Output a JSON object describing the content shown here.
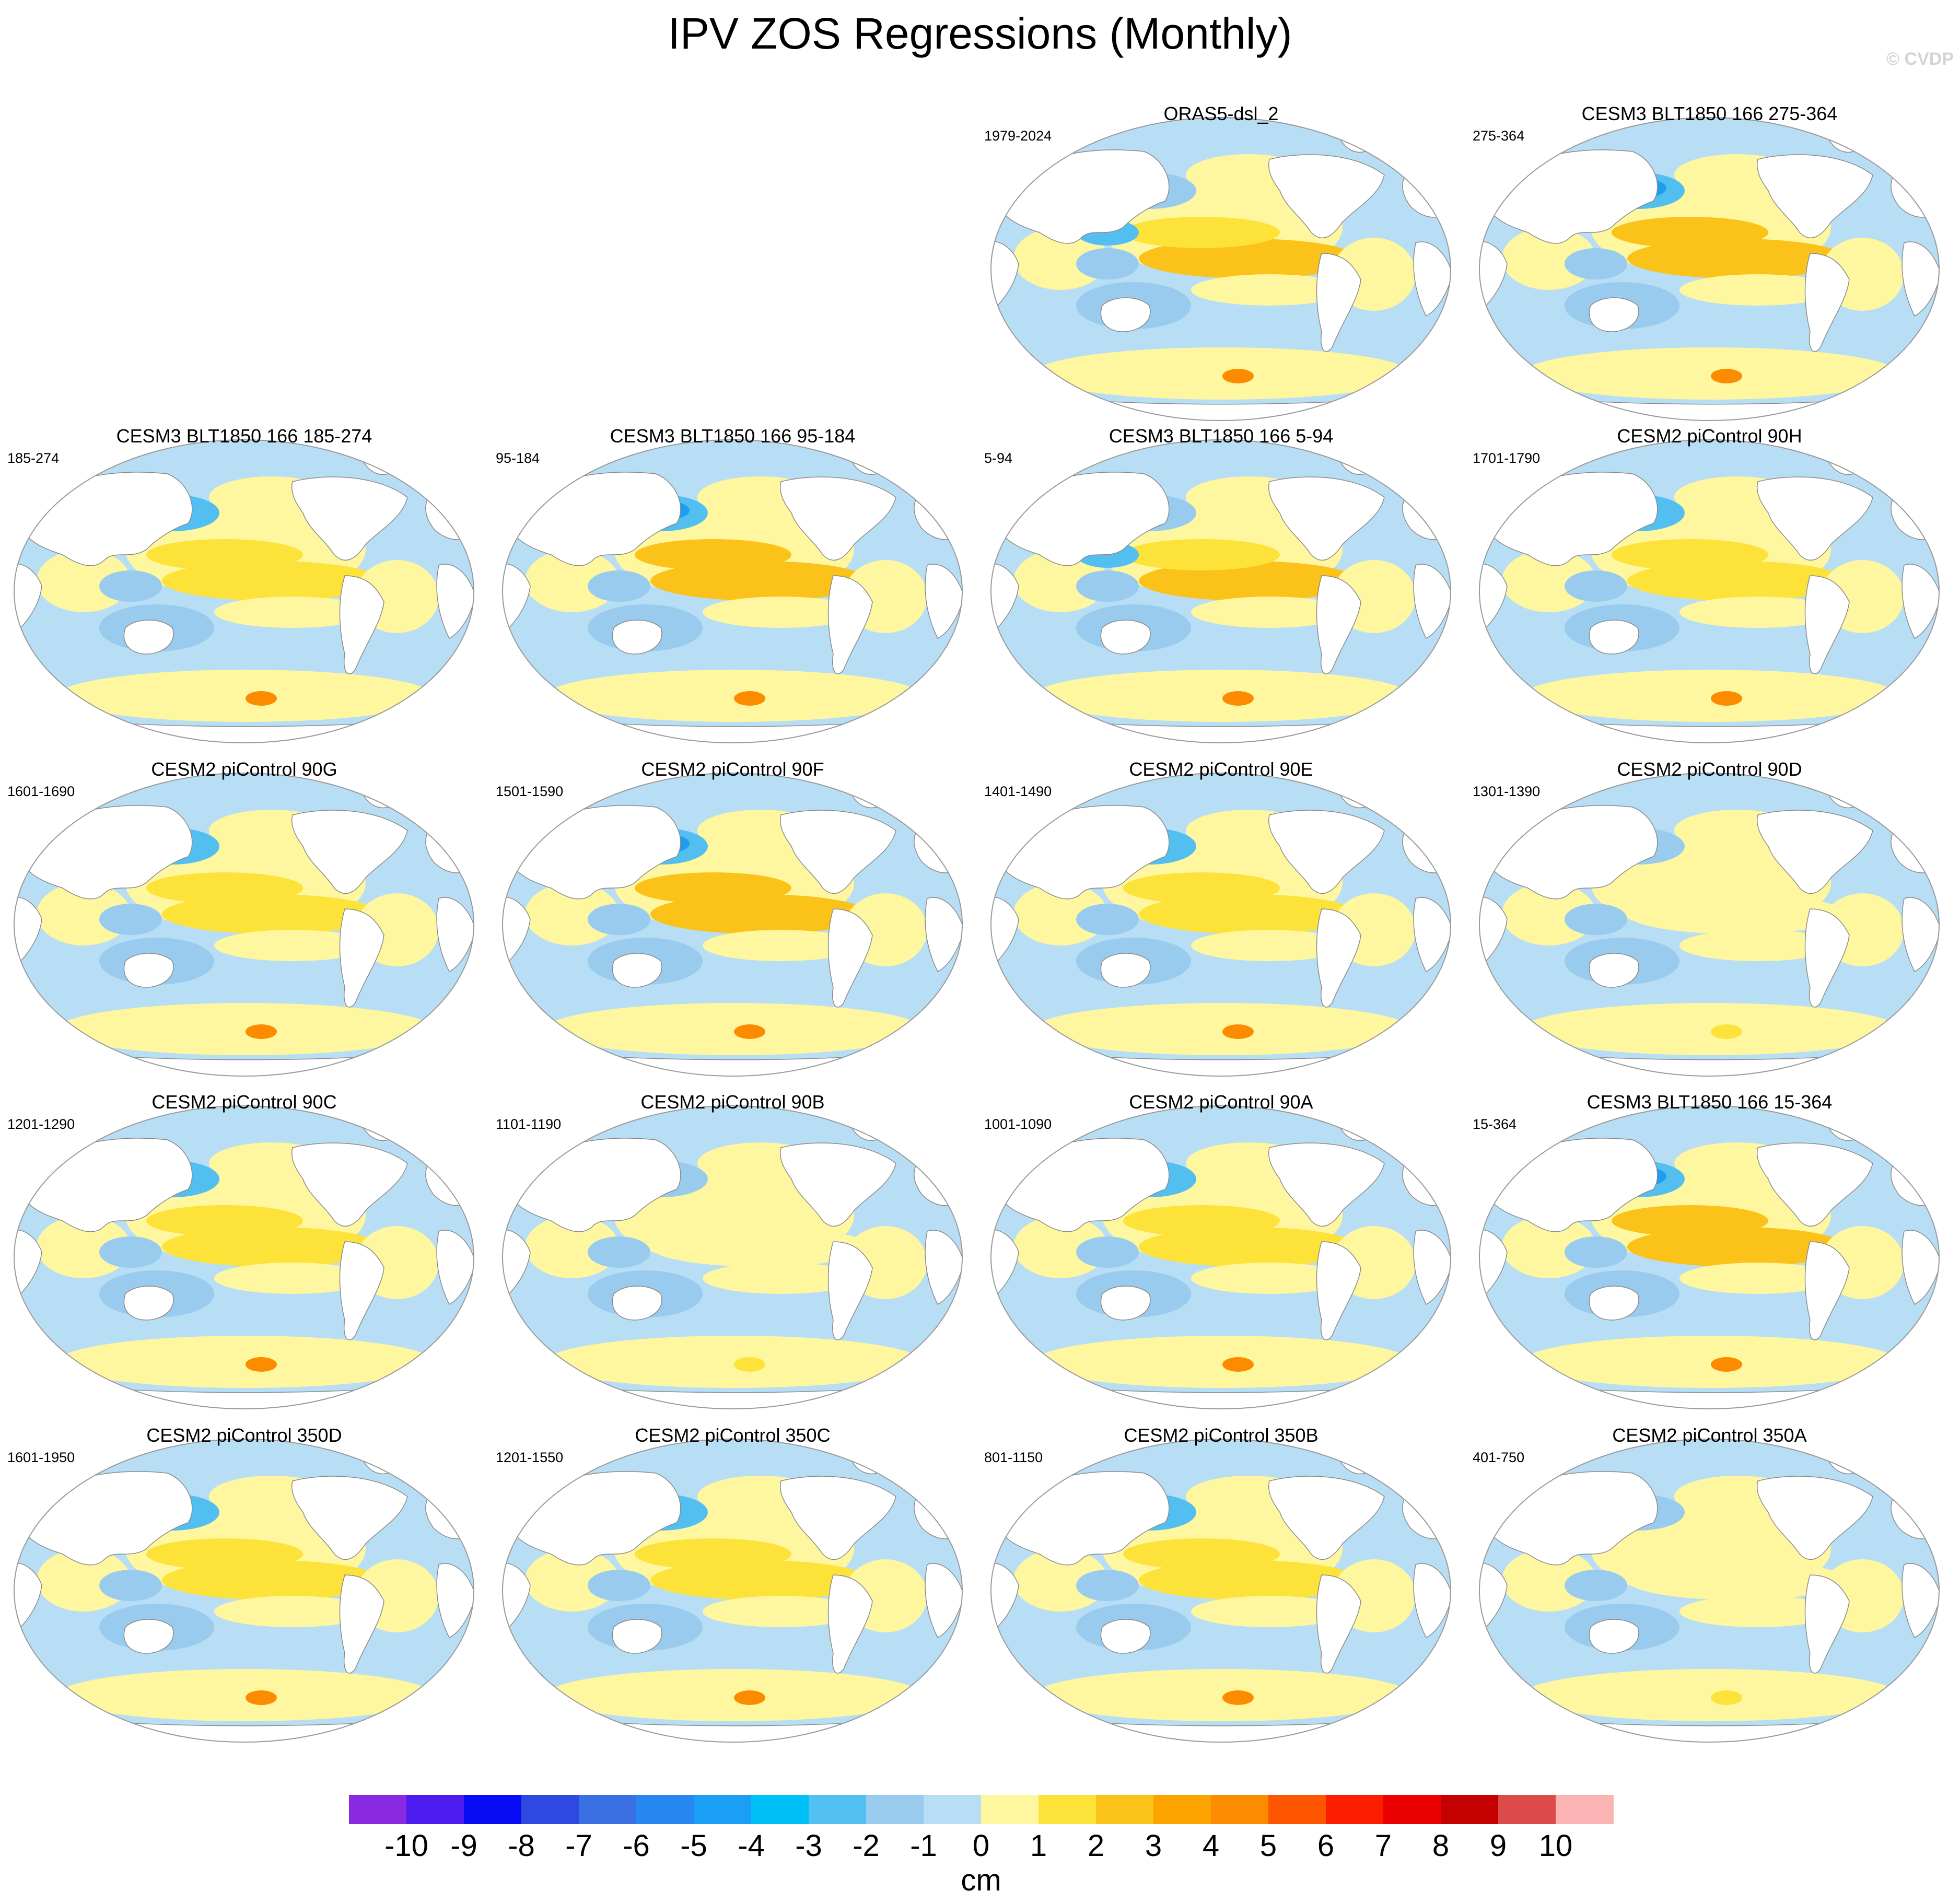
{
  "figure": {
    "title": "IPV ZOS Regressions (Monthly)",
    "watermark": "© CVDP"
  },
  "colors": {
    "ocean_pos_1": "#fff7a0",
    "ocean_pos_2": "#fde23a",
    "ocean_pos_3": "#fbc21a",
    "ocean_pos_5": "#fd8b00",
    "ocean_neg_1": "#b7def4",
    "ocean_neg_2": "#98cbee",
    "ocean_neg_3": "#52bff0",
    "ocean_neg_4": "#1f9ef0",
    "land": "#ffffff",
    "coast": "#8a8a8a"
  },
  "panels": [
    {
      "title": "ORAS5-dsl_2",
      "years": "1979-2024",
      "pattern": 1
    },
    {
      "title": "CESM3 BLT1850 166 275-364",
      "years": "275-364",
      "pattern": 2
    },
    {
      "title": "CESM3 BLT1850 166 185-274",
      "years": "185-274",
      "pattern": 0
    },
    {
      "title": "CESM3 BLT1850 166 95-184",
      "years": "95-184",
      "pattern": 2
    },
    {
      "title": "CESM3 BLT1850 166 5-94",
      "years": "5-94",
      "pattern": 1
    },
    {
      "title": "CESM2 piControl 90H",
      "years": "1701-1790",
      "pattern": 0
    },
    {
      "title": "CESM2 piControl 90G",
      "years": "1601-1690",
      "pattern": 0
    },
    {
      "title": "CESM2 piControl 90F",
      "years": "1501-1590",
      "pattern": 2
    },
    {
      "title": "CESM2 piControl 90E",
      "years": "1401-1490",
      "pattern": 0
    },
    {
      "title": "CESM2 piControl 90D",
      "years": "1301-1390",
      "pattern": 3
    },
    {
      "title": "CESM2 piControl 90C",
      "years": "1201-1290",
      "pattern": 0
    },
    {
      "title": "CESM2 piControl 90B",
      "years": "1101-1190",
      "pattern": 3
    },
    {
      "title": "CESM2 piControl 90A",
      "years": "1001-1090",
      "pattern": 0
    },
    {
      "title": "CESM3 BLT1850 166 15-364",
      "years": "15-364",
      "pattern": 2
    },
    {
      "title": "CESM2 piControl 350D",
      "years": "1601-1950",
      "pattern": 0
    },
    {
      "title": "CESM2 piControl 350C",
      "years": "1201-1550",
      "pattern": 0
    },
    {
      "title": "CESM2 piControl 350B",
      "years": "801-1150",
      "pattern": 0
    },
    {
      "title": "CESM2 piControl 350A",
      "years": "401-750",
      "pattern": 3
    }
  ],
  "colorbar": {
    "unit": "cm",
    "labels": [
      "-10",
      "-9",
      "-8",
      "-7",
      "-6",
      "-5",
      "-4",
      "-3",
      "-2",
      "-1",
      "0",
      "1",
      "2",
      "3",
      "4",
      "5",
      "6",
      "7",
      "8",
      "9",
      "10"
    ],
    "colors": [
      "#8a2be2",
      "#4b1bef",
      "#0a0bf5",
      "#2e49df",
      "#3a70e2",
      "#2787f2",
      "#1a9ff4",
      "#00c0f8",
      "#52c0f2",
      "#98cbee",
      "#b7def4",
      "#fff7a0",
      "#fde23a",
      "#fbc21a",
      "#fca300",
      "#fd8b00",
      "#fd5500",
      "#fd1e00",
      "#ea0000",
      "#c40000",
      "#dc4a4a",
      "#fbb4b4"
    ]
  }
}
